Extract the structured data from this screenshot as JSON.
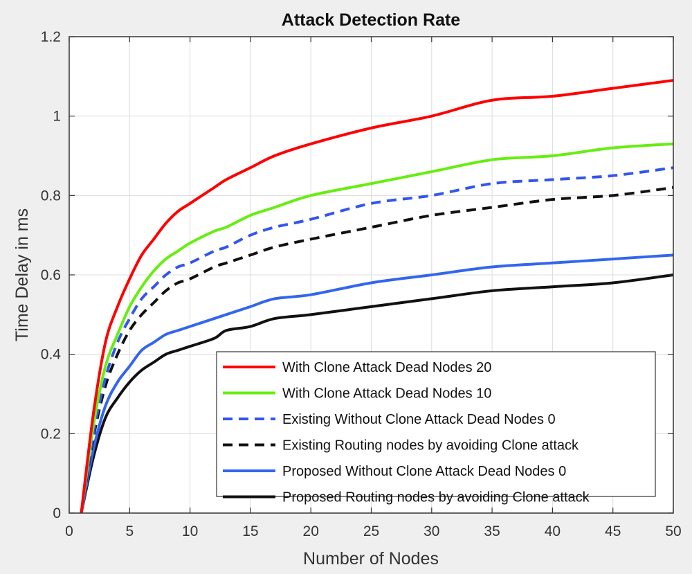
{
  "chart_data": {
    "type": "line",
    "title": "Attack Detection Rate",
    "xlabel": "Number of Nodes",
    "ylabel": "Time Delay in ms",
    "xlim": [
      0,
      50
    ],
    "ylim": [
      0,
      1.2
    ],
    "xticks": [
      0,
      5,
      10,
      15,
      20,
      25,
      30,
      35,
      40,
      45,
      50
    ],
    "yticks": [
      0,
      0.2,
      0.4,
      0.6,
      0.8,
      1,
      1.2
    ],
    "ytick_labels": [
      "0",
      "0.2",
      "0.4",
      "0.6",
      "0.8",
      "1",
      "1.2"
    ],
    "grid": true,
    "legend_position": "bottom-right",
    "x": [
      1,
      2,
      3,
      4,
      5,
      6,
      7,
      8,
      9,
      10,
      12,
      13,
      15,
      17,
      20,
      25,
      30,
      35,
      40,
      45,
      50
    ],
    "series": [
      {
        "name": "With Clone Attack Dead Nodes 20",
        "color": "#ff0000",
        "dash": "solid",
        "values": [
          0,
          0.25,
          0.43,
          0.52,
          0.59,
          0.65,
          0.69,
          0.73,
          0.76,
          0.78,
          0.82,
          0.84,
          0.87,
          0.9,
          0.93,
          0.97,
          1.0,
          1.04,
          1.05,
          1.07,
          1.09
        ]
      },
      {
        "name": "With Clone Attack Dead Nodes 10",
        "color": "#66ee11",
        "dash": "solid",
        "values": [
          0,
          0.22,
          0.37,
          0.45,
          0.52,
          0.57,
          0.61,
          0.64,
          0.66,
          0.68,
          0.71,
          0.72,
          0.75,
          0.77,
          0.8,
          0.83,
          0.86,
          0.89,
          0.9,
          0.92,
          0.93
        ]
      },
      {
        "name": "Existing Without Clone Attack Dead Nodes 0",
        "color": "#3355ee",
        "dash": "dashed",
        "values": [
          0,
          0.2,
          0.34,
          0.43,
          0.49,
          0.54,
          0.57,
          0.6,
          0.62,
          0.63,
          0.66,
          0.67,
          0.7,
          0.72,
          0.74,
          0.78,
          0.8,
          0.83,
          0.84,
          0.85,
          0.87
        ]
      },
      {
        "name": "Existing Routing nodes by avoiding Clone attack",
        "color": "#111111",
        "dash": "dashed",
        "values": [
          0,
          0.19,
          0.32,
          0.4,
          0.46,
          0.5,
          0.53,
          0.56,
          0.58,
          0.59,
          0.62,
          0.63,
          0.65,
          0.67,
          0.69,
          0.72,
          0.75,
          0.77,
          0.79,
          0.8,
          0.82
        ]
      },
      {
        "name": "Proposed Without Clone Attack Dead Nodes 0",
        "color": "#3366ee",
        "dash": "solid",
        "values": [
          0,
          0.16,
          0.27,
          0.33,
          0.37,
          0.41,
          0.43,
          0.45,
          0.46,
          0.47,
          0.49,
          0.5,
          0.52,
          0.54,
          0.55,
          0.58,
          0.6,
          0.62,
          0.63,
          0.64,
          0.65
        ]
      },
      {
        "name": "Proposed Routing nodes by avoiding Clone attack",
        "color": "#111111",
        "dash": "solid",
        "values": [
          0,
          0.14,
          0.24,
          0.29,
          0.33,
          0.36,
          0.38,
          0.4,
          0.41,
          0.42,
          0.44,
          0.46,
          0.47,
          0.49,
          0.5,
          0.52,
          0.54,
          0.56,
          0.57,
          0.58,
          0.6
        ]
      }
    ]
  }
}
